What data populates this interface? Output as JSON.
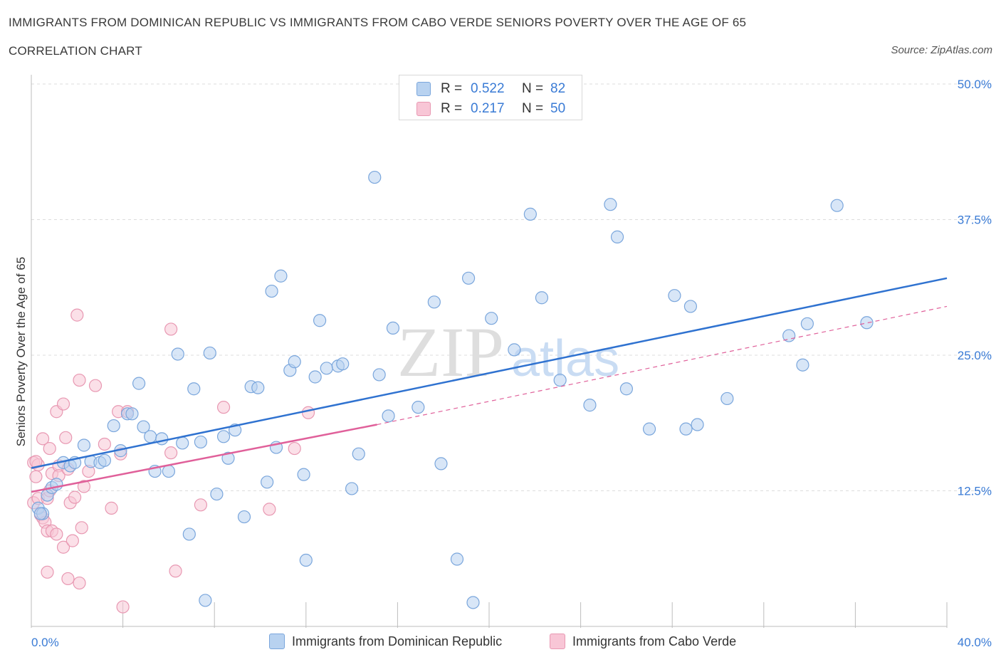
{
  "title": "IMMIGRANTS FROM DOMINICAN REPUBLIC VS IMMIGRANTS FROM CABO VERDE SENIORS POVERTY OVER THE AGE OF 65",
  "subtitle": "CORRELATION CHART",
  "source": "Source: ZipAtlas.com",
  "watermark": {
    "zip": "ZIP",
    "atlas": "atlas"
  },
  "legend": {
    "r_label": "R =",
    "n_label": "N =",
    "series1": {
      "r": "0.522",
      "n": "82"
    },
    "series2": {
      "r": "0.217",
      "n": "50"
    }
  },
  "colors": {
    "blue_fill": "#b8d2f0",
    "blue_stroke": "#7aa6dc",
    "blue_line": "#2f72d0",
    "pink_fill": "#f8c6d6",
    "pink_stroke": "#e898b2",
    "pink_line": "#e0609a",
    "axis_text": "#3a7bd5",
    "grid": "#dcdcdc"
  },
  "chart_data": {
    "type": "scatter",
    "title": "IMMIGRANTS FROM DOMINICAN REPUBLIC VS IMMIGRANTS FROM CABO VERDE SENIORS POVERTY OVER THE AGE OF 65",
    "xlabel": "",
    "ylabel": "Seniors Poverty Over the Age of 65",
    "xlim": [
      0,
      40
    ],
    "ylim": [
      0,
      50
    ],
    "x_tick_labels": [
      "0.0%",
      "40.0%"
    ],
    "y_ticks": [
      12.5,
      25,
      37.5,
      50
    ],
    "y_tick_labels": [
      "12.5%",
      "25.0%",
      "37.5%",
      "50.0%"
    ],
    "series": [
      {
        "name": "Immigrants from Dominican Republic",
        "color": "blue",
        "trend": {
          "x0": 0,
          "y0": 14.6,
          "x1": 40,
          "y1": 32.1,
          "dashed_after": null
        },
        "points": [
          [
            0.3,
            10.9
          ],
          [
            0.5,
            10.4
          ],
          [
            0.7,
            12.1
          ],
          [
            0.9,
            12.8
          ],
          [
            1.1,
            13.1
          ],
          [
            1.4,
            15.1
          ],
          [
            1.7,
            14.8
          ],
          [
            1.9,
            15.1
          ],
          [
            2.3,
            16.7
          ],
          [
            2.6,
            15.2
          ],
          [
            3.0,
            15.1
          ],
          [
            3.2,
            15.3
          ],
          [
            3.6,
            18.5
          ],
          [
            3.9,
            16.2
          ],
          [
            4.2,
            19.6
          ],
          [
            4.4,
            19.6
          ],
          [
            4.7,
            22.4
          ],
          [
            4.9,
            18.4
          ],
          [
            5.2,
            17.5
          ],
          [
            5.4,
            14.3
          ],
          [
            5.7,
            17.3
          ],
          [
            6.0,
            14.3
          ],
          [
            6.4,
            25.1
          ],
          [
            6.6,
            16.9
          ],
          [
            6.9,
            8.5
          ],
          [
            7.1,
            21.9
          ],
          [
            7.4,
            17.0
          ],
          [
            7.6,
            2.4
          ],
          [
            7.8,
            25.2
          ],
          [
            8.1,
            12.2
          ],
          [
            8.4,
            17.5
          ],
          [
            8.6,
            15.5
          ],
          [
            8.9,
            18.1
          ],
          [
            9.3,
            10.1
          ],
          [
            9.6,
            22.1
          ],
          [
            9.9,
            22.0
          ],
          [
            10.3,
            13.3
          ],
          [
            10.5,
            30.9
          ],
          [
            10.7,
            16.5
          ],
          [
            10.9,
            32.3
          ],
          [
            11.3,
            23.6
          ],
          [
            11.5,
            24.4
          ],
          [
            11.9,
            14.0
          ],
          [
            12.0,
            6.1
          ],
          [
            12.4,
            23.0
          ],
          [
            12.6,
            28.2
          ],
          [
            12.9,
            23.8
          ],
          [
            13.4,
            24.0
          ],
          [
            13.6,
            24.2
          ],
          [
            14.0,
            12.7
          ],
          [
            14.3,
            15.9
          ],
          [
            15.0,
            41.4
          ],
          [
            15.2,
            23.2
          ],
          [
            15.6,
            19.4
          ],
          [
            15.8,
            27.5
          ],
          [
            16.9,
            20.2
          ],
          [
            17.6,
            29.9
          ],
          [
            17.9,
            15.0
          ],
          [
            18.6,
            6.2
          ],
          [
            19.1,
            32.1
          ],
          [
            19.3,
            2.2
          ],
          [
            20.1,
            28.4
          ],
          [
            21.1,
            25.5
          ],
          [
            21.8,
            38.0
          ],
          [
            22.3,
            30.3
          ],
          [
            23.1,
            22.7
          ],
          [
            24.4,
            20.4
          ],
          [
            25.3,
            38.9
          ],
          [
            25.6,
            35.9
          ],
          [
            26.0,
            21.9
          ],
          [
            27.0,
            18.2
          ],
          [
            28.1,
            30.5
          ],
          [
            28.6,
            18.2
          ],
          [
            28.8,
            29.5
          ],
          [
            29.1,
            18.6
          ],
          [
            30.4,
            21.0
          ],
          [
            33.1,
            26.8
          ],
          [
            33.7,
            24.1
          ],
          [
            33.9,
            27.9
          ],
          [
            35.2,
            38.8
          ],
          [
            36.5,
            28.0
          ],
          [
            0.4,
            10.4
          ]
        ]
      },
      {
        "name": "Immigrants from Cabo Verde",
        "color": "pink",
        "trend": {
          "x0": 0,
          "y0": 12.4,
          "x1": 15.1,
          "y1": 18.6,
          "dashed_x1": 40,
          "dashed_y1": 29.5
        },
        "points": [
          [
            0.1,
            11.4
          ],
          [
            0.1,
            15.1
          ],
          [
            0.2,
            13.8
          ],
          [
            0.3,
            11.8
          ],
          [
            0.3,
            14.9
          ],
          [
            0.4,
            10.3
          ],
          [
            0.5,
            10.0
          ],
          [
            0.5,
            17.3
          ],
          [
            0.6,
            9.6
          ],
          [
            0.7,
            8.8
          ],
          [
            0.7,
            11.8
          ],
          [
            0.7,
            5.0
          ],
          [
            0.8,
            12.5
          ],
          [
            0.8,
            16.4
          ],
          [
            0.9,
            8.8
          ],
          [
            0.9,
            14.1
          ],
          [
            1.1,
            19.8
          ],
          [
            1.1,
            8.5
          ],
          [
            1.2,
            14.8
          ],
          [
            1.2,
            13.9
          ],
          [
            1.4,
            7.3
          ],
          [
            1.4,
            20.5
          ],
          [
            1.5,
            17.4
          ],
          [
            1.6,
            14.5
          ],
          [
            1.6,
            4.4
          ],
          [
            1.7,
            11.4
          ],
          [
            1.8,
            7.9
          ],
          [
            1.9,
            11.9
          ],
          [
            2.0,
            28.7
          ],
          [
            2.1,
            22.7
          ],
          [
            2.1,
            4.0
          ],
          [
            2.2,
            9.1
          ],
          [
            2.3,
            12.9
          ],
          [
            2.5,
            14.3
          ],
          [
            2.8,
            22.2
          ],
          [
            3.2,
            16.8
          ],
          [
            3.5,
            10.9
          ],
          [
            3.8,
            19.8
          ],
          [
            3.9,
            15.9
          ],
          [
            4.0,
            1.8
          ],
          [
            4.2,
            19.8
          ],
          [
            6.1,
            16.0
          ],
          [
            6.1,
            27.4
          ],
          [
            6.3,
            5.1
          ],
          [
            7.4,
            11.2
          ],
          [
            8.4,
            20.2
          ],
          [
            10.4,
            10.8
          ],
          [
            11.5,
            16.4
          ],
          [
            12.1,
            19.7
          ],
          [
            0.2,
            15.2
          ]
        ]
      }
    ]
  },
  "bottom_legend": {
    "series1": "Immigrants from Dominican Republic",
    "series2": "Immigrants from Cabo Verde"
  }
}
